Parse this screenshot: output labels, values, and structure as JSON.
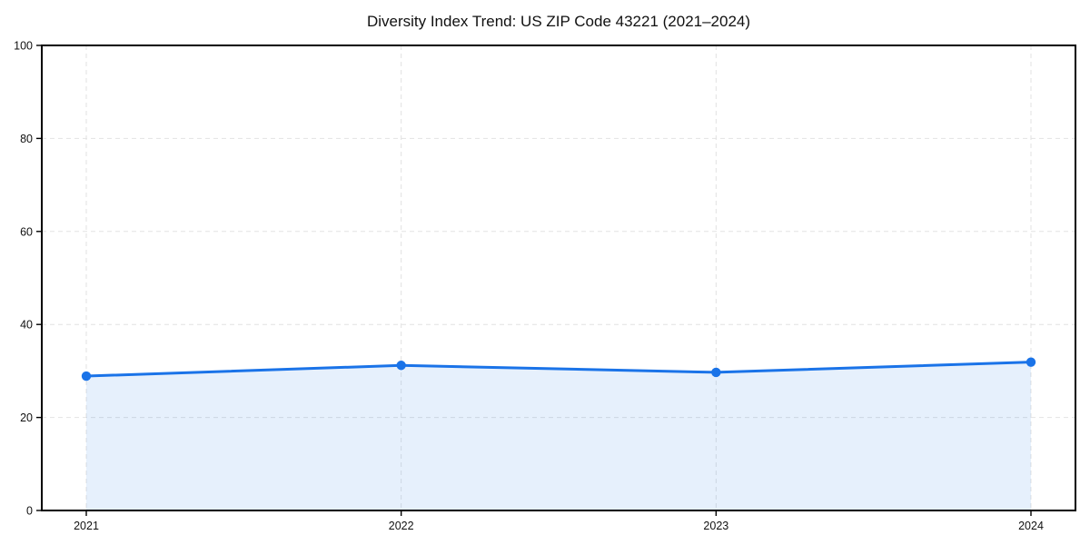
{
  "chart_data": {
    "type": "line",
    "title": "Diversity Index Trend: US ZIP Code 43221 (2021–2024)",
    "x": [
      "2021",
      "2022",
      "2023",
      "2024"
    ],
    "series": [
      {
        "name": "Diversity Index",
        "values": [
          28.9,
          31.2,
          29.7,
          31.9
        ]
      }
    ],
    "xlabel": "",
    "ylabel": "",
    "ylim": [
      0,
      100
    ],
    "yticks": [
      0,
      20,
      40,
      60,
      80,
      100
    ],
    "grid": "dashed-both-axes",
    "legend": "none",
    "area_fill": true,
    "colors": {
      "line": "#1a73e8",
      "marker": "#1a73e8",
      "fill": "rgba(26,115,232,0.11)",
      "grid": "#e2e2e2",
      "spine": "#000000",
      "text": "#111111",
      "background": "#ffffff"
    }
  }
}
